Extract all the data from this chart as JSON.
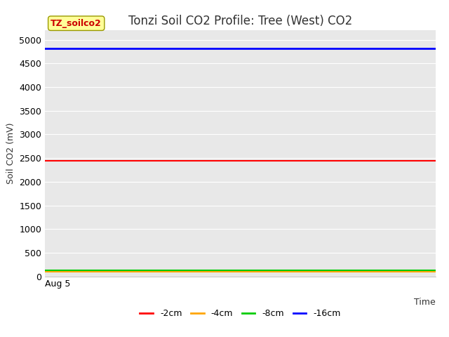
{
  "title": "Tonzi Soil CO2 Profile: Tree (West) CO2",
  "ylabel": "Soil CO2 (mV)",
  "xlabel": "Time",
  "xtick_label": "Aug 5",
  "ylim": [
    0,
    5200
  ],
  "yticks": [
    0,
    500,
    1000,
    1500,
    2000,
    2500,
    3000,
    3500,
    4000,
    4500,
    5000
  ],
  "series": {
    "-2cm": {
      "value": 2450,
      "color": "#ff0000",
      "linewidth": 1.5
    },
    "-4cm": {
      "value": 105,
      "color": "#ffa500",
      "linewidth": 1.5
    },
    "-8cm": {
      "value": 130,
      "color": "#00cc00",
      "linewidth": 1.5
    },
    "-16cm": {
      "value": 4820,
      "color": "#0000ff",
      "linewidth": 2.0
    }
  },
  "x_range": [
    0,
    100
  ],
  "legend_order": [
    "-2cm",
    "-4cm",
    "-8cm",
    "-16cm"
  ],
  "watermark_text": "TZ_soilco2",
  "watermark_bg": "#ffff99",
  "watermark_fg": "#cc0000",
  "watermark_edge": "#999900",
  "plot_bg": "#e8e8e8",
  "fig_bg": "#ffffff",
  "grid_color": "#ffffff",
  "title_fontsize": 12,
  "axis_label_fontsize": 9,
  "tick_fontsize": 9,
  "legend_fontsize": 9
}
